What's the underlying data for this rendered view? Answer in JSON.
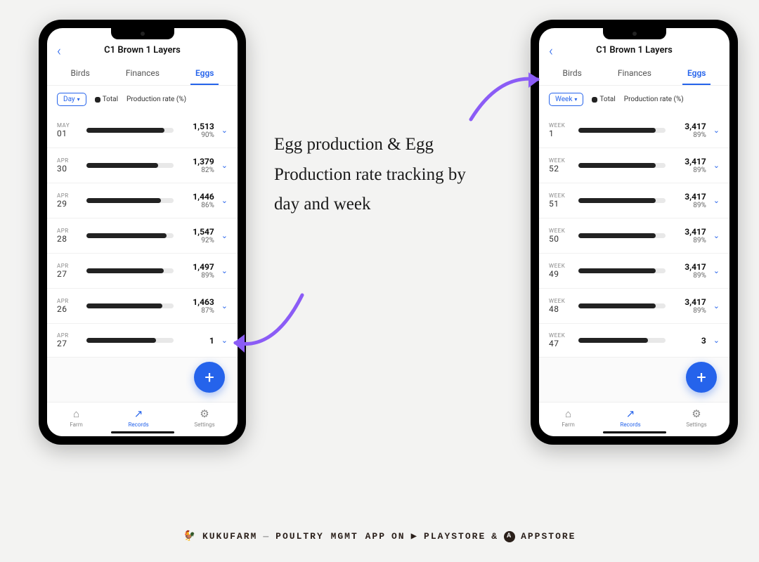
{
  "background_color": "#f3f3f2",
  "accent_color": "#2563eb",
  "bar_color": "#222222",
  "track_color": "#e8e8e8",
  "annotation_arrow_color": "#8b5cf6",
  "phone_left": {
    "title": "C1 Brown 1 Layers",
    "tabs": [
      {
        "label": "Birds",
        "active": false
      },
      {
        "label": "Finances",
        "active": false
      },
      {
        "label": "Eggs",
        "active": true
      }
    ],
    "period": "Day",
    "legend_total": "Total",
    "legend_rate": "Production rate (%)",
    "rows": [
      {
        "month": "MAY",
        "day": "01",
        "count": "1,513",
        "pct": "90%",
        "bar_pct": 90
      },
      {
        "month": "APR",
        "day": "30",
        "count": "1,379",
        "pct": "82%",
        "bar_pct": 82
      },
      {
        "month": "APR",
        "day": "29",
        "count": "1,446",
        "pct": "86%",
        "bar_pct": 86
      },
      {
        "month": "APR",
        "day": "28",
        "count": "1,547",
        "pct": "92%",
        "bar_pct": 92
      },
      {
        "month": "APR",
        "day": "27",
        "count": "1,497",
        "pct": "89%",
        "bar_pct": 89
      },
      {
        "month": "APR",
        "day": "26",
        "count": "1,463",
        "pct": "87%",
        "bar_pct": 87
      },
      {
        "month": "APR",
        "day": "27",
        "count": "1",
        "pct": "",
        "bar_pct": 80
      }
    ],
    "nav": [
      {
        "label": "Farm",
        "icon": "⌂",
        "active": false
      },
      {
        "label": "Records",
        "icon": "↗",
        "active": true
      },
      {
        "label": "Settings",
        "icon": "⚙",
        "active": false
      }
    ]
  },
  "phone_right": {
    "title": "C1 Brown 1 Layers",
    "tabs": [
      {
        "label": "Birds",
        "active": false
      },
      {
        "label": "Finances",
        "active": false
      },
      {
        "label": "Eggs",
        "active": true
      }
    ],
    "period": "Week",
    "legend_total": "Total",
    "legend_rate": "Production rate (%)",
    "rows": [
      {
        "month": "WEEK",
        "day": "1",
        "count": "3,417",
        "pct": "89%",
        "bar_pct": 89
      },
      {
        "month": "WEEK",
        "day": "52",
        "count": "3,417",
        "pct": "89%",
        "bar_pct": 89
      },
      {
        "month": "WEEK",
        "day": "51",
        "count": "3,417",
        "pct": "89%",
        "bar_pct": 89
      },
      {
        "month": "WEEK",
        "day": "50",
        "count": "3,417",
        "pct": "89%",
        "bar_pct": 89
      },
      {
        "month": "WEEK",
        "day": "49",
        "count": "3,417",
        "pct": "89%",
        "bar_pct": 89
      },
      {
        "month": "WEEK",
        "day": "48",
        "count": "3,417",
        "pct": "89%",
        "bar_pct": 89
      },
      {
        "month": "WEEK",
        "day": "47",
        "count": "3",
        "pct": "",
        "bar_pct": 80
      }
    ],
    "nav": [
      {
        "label": "Farm",
        "icon": "⌂",
        "active": false
      },
      {
        "label": "Records",
        "icon": "↗",
        "active": true
      },
      {
        "label": "Settings",
        "icon": "⚙",
        "active": false
      }
    ]
  },
  "annotation": "Egg production & Egg Production rate tracking by day and week",
  "footer": {
    "brand": "KUKUFARM",
    "tagline": "POULTRY MGMT APP",
    "on": "ON",
    "playstore": "PLAYSTORE",
    "amp": "&",
    "appstore": "APPSTORE"
  }
}
